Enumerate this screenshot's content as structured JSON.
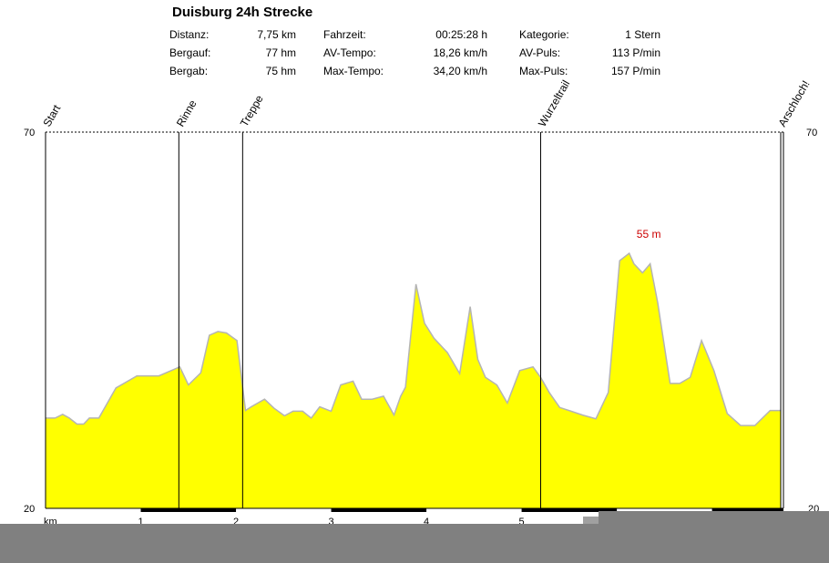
{
  "header": {
    "title": "Duisburg 24h Strecke",
    "stats": [
      {
        "label": "Distanz:",
        "value": "7,75 km"
      },
      {
        "label": "Bergauf:",
        "value": "77 hm"
      },
      {
        "label": "Bergab:",
        "value": "75 hm"
      },
      {
        "label": "Fahrzeit:",
        "value": "00:25:28 h"
      },
      {
        "label": "AV-Tempo:",
        "value": "18,26 km/h"
      },
      {
        "label": "Max-Tempo:",
        "value": "34,20 km/h"
      },
      {
        "label": "Kategorie:",
        "value": "1 Stern"
      },
      {
        "label": "AV-Puls:",
        "value": "113 P/min"
      },
      {
        "label": "Max-Puls:",
        "value": "157 P/min"
      }
    ]
  },
  "chart_data": {
    "type": "area",
    "title": "Duisburg 24h Strecke",
    "xlabel": "km",
    "ylabel": "",
    "xlim": [
      0,
      7.75
    ],
    "ylim": [
      20,
      70
    ],
    "x_ticks": [
      "1",
      "2",
      "3",
      "4",
      "5"
    ],
    "y_tick_labels": {
      "top": "70",
      "bottom": "20"
    },
    "fill_color": "#ffff00",
    "line_color": "#b4b4b4",
    "grid": false,
    "max_annotation": {
      "text": "55 m",
      "x": 6.15,
      "y": 55,
      "color": "#cc0000"
    },
    "waypoints": [
      {
        "name": "Start",
        "x": 0.0
      },
      {
        "name": "Rinne",
        "x": 1.4
      },
      {
        "name": "Treppe",
        "x": 2.07
      },
      {
        "name": "Wurzeltrail",
        "x": 5.2
      },
      {
        "name": "Arschloch!",
        "x": 7.72
      }
    ],
    "profile": {
      "x": [
        0.0,
        0.1,
        0.18,
        0.25,
        0.33,
        0.4,
        0.46,
        0.56,
        0.74,
        0.96,
        1.19,
        1.41,
        1.5,
        1.63,
        1.72,
        1.81,
        1.9,
        2.01,
        2.1,
        2.16,
        2.3,
        2.4,
        2.51,
        2.6,
        2.7,
        2.79,
        2.88,
        3.0,
        3.1,
        3.23,
        3.32,
        3.43,
        3.55,
        3.66,
        3.73,
        3.78,
        3.89,
        3.98,
        4.08,
        4.22,
        4.35,
        4.46,
        4.54,
        4.62,
        4.74,
        4.85,
        4.98,
        5.12,
        5.2,
        5.29,
        5.4,
        5.52,
        5.64,
        5.78,
        5.91,
        6.03,
        6.13,
        6.18,
        6.27,
        6.35,
        6.43,
        6.56,
        6.66,
        6.77,
        6.89,
        7.02,
        7.16,
        7.3,
        7.45,
        7.61,
        7.72
      ],
      "y": [
        32,
        32,
        32.5,
        32,
        31.2,
        31.2,
        32,
        32,
        36,
        37.6,
        37.6,
        38.8,
        36.4,
        38,
        43,
        43.5,
        43.3,
        42.3,
        33,
        33.5,
        34.5,
        33.3,
        32.3,
        32.9,
        32.9,
        32,
        33.5,
        32.9,
        36.4,
        36.9,
        34.5,
        34.5,
        34.9,
        32.4,
        34.9,
        36.1,
        49.8,
        44.6,
        42.6,
        40.7,
        37.9,
        46.8,
        39.8,
        37.4,
        36.4,
        34,
        38.3,
        38.8,
        37.4,
        35.4,
        33.4,
        32.9,
        32.4,
        31.9,
        35.4,
        52.9,
        53.9,
        52.5,
        51.3,
        52.5,
        47.3,
        36.6,
        36.6,
        37.4,
        42.3,
        38.3,
        32.6,
        31,
        31,
        33,
        33
      ]
    }
  }
}
